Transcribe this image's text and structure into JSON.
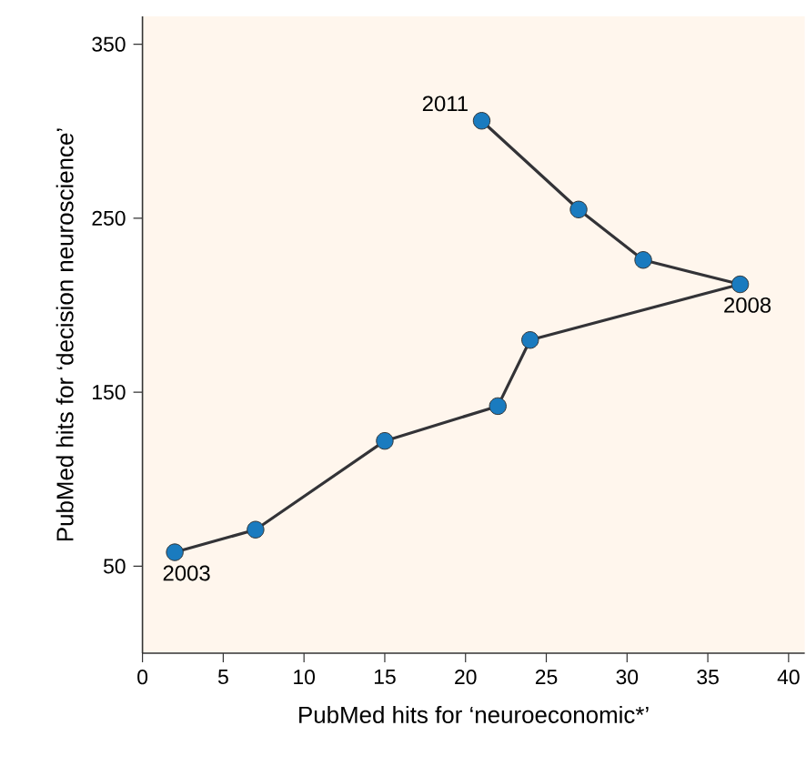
{
  "chart_data": {
    "type": "line",
    "xlabel": "PubMed hits for ‘neuroeconomic*’",
    "ylabel": "PubMed hits for ‘decision neuroscience’",
    "x": [
      2,
      7,
      15,
      22,
      24,
      37,
      31,
      27,
      21
    ],
    "series": [
      {
        "color": "#1a7bbf",
        "values": [
          58,
          71,
          122,
          142,
          180,
          212,
          226,
          255,
          306
        ]
      }
    ],
    "xlim": [
      0,
      41
    ],
    "ylim": [
      0,
      366
    ],
    "xticks": [
      0,
      5,
      10,
      15,
      20,
      25,
      30,
      35,
      40
    ],
    "yticks": [
      50,
      150,
      250,
      350
    ],
    "marker": "circle",
    "line_style": "solid",
    "grid": false,
    "annotations": [
      {
        "text": "2003",
        "x": 2,
        "y": 58
      },
      {
        "text": "2008",
        "x": 37,
        "y": 212
      },
      {
        "text": "2011",
        "x": 21,
        "y": 306
      }
    ]
  }
}
